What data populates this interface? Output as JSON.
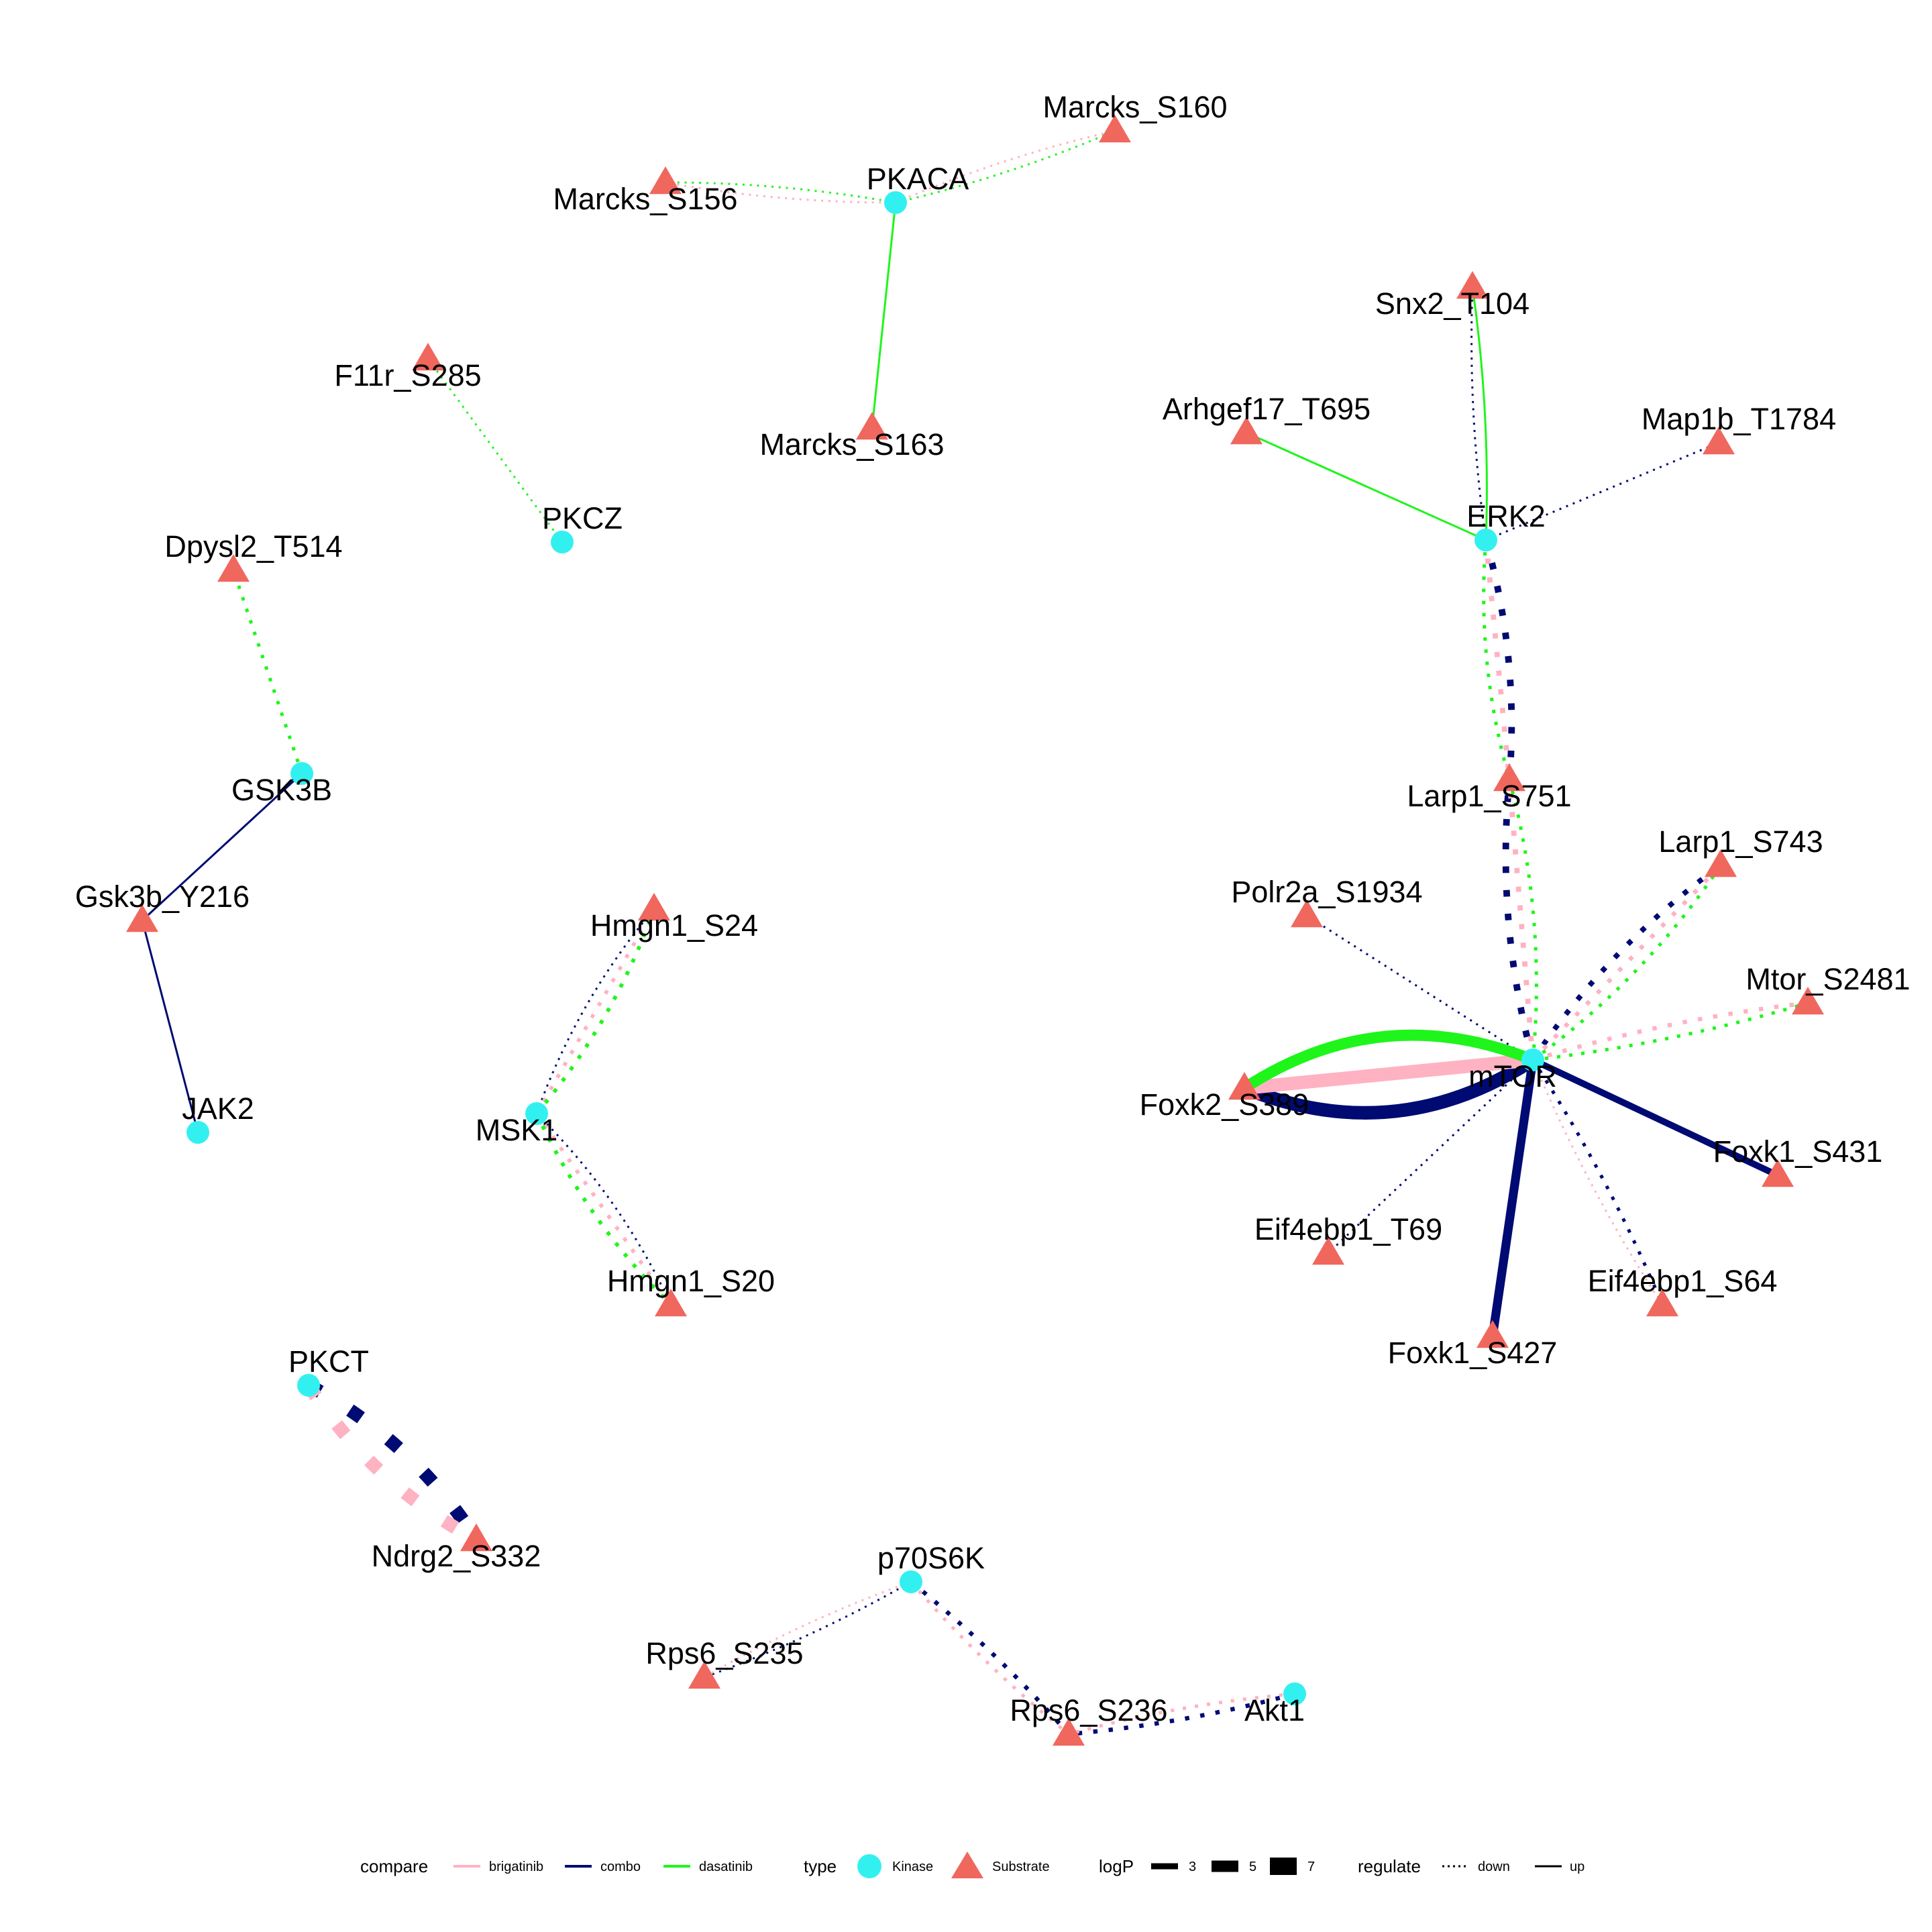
{
  "colors": {
    "kinase": "#33F0F0",
    "substrate": "#F0675E",
    "brigatinib": "#FFB2C2",
    "combo": "#000A73",
    "dasatinib": "#1FF51B"
  },
  "nodes": [
    {
      "id": "PKACA",
      "type": "Kinase"
    },
    {
      "id": "Marcks_S160",
      "type": "Substrate"
    },
    {
      "id": "Marcks_S156",
      "type": "Substrate"
    },
    {
      "id": "Marcks_S163",
      "type": "Substrate"
    },
    {
      "id": "F11r_S285",
      "type": "Substrate"
    },
    {
      "id": "PKCZ",
      "type": "Kinase"
    },
    {
      "id": "Dpysl2_T514",
      "type": "Substrate"
    },
    {
      "id": "GSK3B",
      "type": "Kinase"
    },
    {
      "id": "Gsk3b_Y216",
      "type": "Substrate"
    },
    {
      "id": "JAK2",
      "type": "Kinase"
    },
    {
      "id": "Hmgn1_S24",
      "type": "Substrate"
    },
    {
      "id": "MSK1",
      "type": "Kinase"
    },
    {
      "id": "Hmgn1_S20",
      "type": "Substrate"
    },
    {
      "id": "PKCT",
      "type": "Kinase"
    },
    {
      "id": "Ndrg2_S332",
      "type": "Substrate"
    },
    {
      "id": "p70S6K",
      "type": "Kinase"
    },
    {
      "id": "Rps6_S235",
      "type": "Substrate"
    },
    {
      "id": "Rps6_S236",
      "type": "Substrate"
    },
    {
      "id": "Akt1",
      "type": "Kinase"
    },
    {
      "id": "Snx2_T104",
      "type": "Substrate"
    },
    {
      "id": "Arhgef17_T695",
      "type": "Substrate"
    },
    {
      "id": "Map1b_T1784",
      "type": "Substrate"
    },
    {
      "id": "ERK2",
      "type": "Kinase"
    },
    {
      "id": "Larp1_S751",
      "type": "Substrate"
    },
    {
      "id": "Larp1_S743",
      "type": "Substrate"
    },
    {
      "id": "Polr2a_S1934",
      "type": "Substrate"
    },
    {
      "id": "Mtor_S2481",
      "type": "Substrate"
    },
    {
      "id": "mTOR",
      "type": "Kinase"
    },
    {
      "id": "Foxk2_S389",
      "type": "Substrate"
    },
    {
      "id": "Foxk1_S431",
      "type": "Substrate"
    },
    {
      "id": "Eif4ebp1_T69",
      "type": "Substrate"
    },
    {
      "id": "Eif4ebp1_S64",
      "type": "Substrate"
    },
    {
      "id": "Foxk1_S427",
      "type": "Substrate"
    }
  ],
  "edges": [
    {
      "from": "PKACA",
      "to": "Marcks_S160",
      "compare": "brigatinib",
      "regulate": "down",
      "logP": 2
    },
    {
      "from": "PKACA",
      "to": "Marcks_S160",
      "compare": "dasatinib",
      "regulate": "down",
      "logP": 2
    },
    {
      "from": "PKACA",
      "to": "Marcks_S156",
      "compare": "brigatinib",
      "regulate": "down",
      "logP": 2
    },
    {
      "from": "PKACA",
      "to": "Marcks_S156",
      "compare": "dasatinib",
      "regulate": "down",
      "logP": 2
    },
    {
      "from": "PKACA",
      "to": "Marcks_S163",
      "compare": "dasatinib",
      "regulate": "up",
      "logP": 2
    },
    {
      "from": "PKCZ",
      "to": "F11r_S285",
      "compare": "dasatinib",
      "regulate": "down",
      "logP": 2
    },
    {
      "from": "GSK3B",
      "to": "Dpysl2_T514",
      "compare": "dasatinib",
      "regulate": "down",
      "logP": 2.6
    },
    {
      "from": "GSK3B",
      "to": "Gsk3b_Y216",
      "compare": "combo",
      "regulate": "up",
      "logP": 1.8
    },
    {
      "from": "JAK2",
      "to": "Gsk3b_Y216",
      "compare": "combo",
      "regulate": "up",
      "logP": 1.8
    },
    {
      "from": "MSK1",
      "to": "Hmgn1_S24",
      "compare": "combo",
      "regulate": "down",
      "logP": 2
    },
    {
      "from": "MSK1",
      "to": "Hmgn1_S24",
      "compare": "brigatinib",
      "regulate": "down",
      "logP": 2.8
    },
    {
      "from": "MSK1",
      "to": "Hmgn1_S24",
      "compare": "dasatinib",
      "regulate": "down",
      "logP": 2.8
    },
    {
      "from": "MSK1",
      "to": "Hmgn1_S20",
      "compare": "combo",
      "regulate": "down",
      "logP": 2
    },
    {
      "from": "MSK1",
      "to": "Hmgn1_S20",
      "compare": "brigatinib",
      "regulate": "down",
      "logP": 2.8
    },
    {
      "from": "MSK1",
      "to": "Hmgn1_S20",
      "compare": "dasatinib",
      "regulate": "down",
      "logP": 2.8
    },
    {
      "from": "PKCT",
      "to": "Ndrg2_S332",
      "compare": "brigatinib",
      "regulate": "down",
      "logP": 7
    },
    {
      "from": "PKCT",
      "to": "Ndrg2_S332",
      "compare": "combo",
      "regulate": "down",
      "logP": 7
    },
    {
      "from": "p70S6K",
      "to": "Rps6_S235",
      "compare": "brigatinib",
      "regulate": "down",
      "logP": 2
    },
    {
      "from": "p70S6K",
      "to": "Rps6_S235",
      "compare": "combo",
      "regulate": "down",
      "logP": 2
    },
    {
      "from": "p70S6K",
      "to": "Rps6_S236",
      "compare": "brigatinib",
      "regulate": "down",
      "logP": 2.6
    },
    {
      "from": "p70S6K",
      "to": "Rps6_S236",
      "compare": "combo",
      "regulate": "down",
      "logP": 3
    },
    {
      "from": "Akt1",
      "to": "Rps6_S236",
      "compare": "brigatinib",
      "regulate": "down",
      "logP": 2.6
    },
    {
      "from": "Akt1",
      "to": "Rps6_S236",
      "compare": "combo",
      "regulate": "down",
      "logP": 3
    },
    {
      "from": "ERK2",
      "to": "Snx2_T104",
      "compare": "combo",
      "regulate": "down",
      "logP": 2
    },
    {
      "from": "ERK2",
      "to": "Snx2_T104",
      "compare": "dasatinib",
      "regulate": "up",
      "logP": 2
    },
    {
      "from": "ERK2",
      "to": "Arhgef17_T695",
      "compare": "dasatinib",
      "regulate": "up",
      "logP": 2
    },
    {
      "from": "ERK2",
      "to": "Map1b_T1784",
      "compare": "combo",
      "regulate": "down",
      "logP": 2
    },
    {
      "from": "ERK2",
      "to": "Larp1_S751",
      "compare": "combo",
      "regulate": "down",
      "logP": 4
    },
    {
      "from": "ERK2",
      "to": "Larp1_S751",
      "compare": "brigatinib",
      "regulate": "down",
      "logP": 3.4
    },
    {
      "from": "ERK2",
      "to": "Larp1_S751",
      "compare": "dasatinib",
      "regulate": "down",
      "logP": 2.6
    },
    {
      "from": "mTOR",
      "to": "Larp1_S751",
      "compare": "combo",
      "regulate": "down",
      "logP": 4
    },
    {
      "from": "mTOR",
      "to": "Larp1_S751",
      "compare": "brigatinib",
      "regulate": "down",
      "logP": 3.4
    },
    {
      "from": "mTOR",
      "to": "Larp1_S751",
      "compare": "dasatinib",
      "regulate": "down",
      "logP": 2.6
    },
    {
      "from": "mTOR",
      "to": "Larp1_S743",
      "compare": "combo",
      "regulate": "down",
      "logP": 3.4
    },
    {
      "from": "mTOR",
      "to": "Larp1_S743",
      "compare": "brigatinib",
      "regulate": "down",
      "logP": 3
    },
    {
      "from": "mTOR",
      "to": "Larp1_S743",
      "compare": "dasatinib",
      "regulate": "down",
      "logP": 2.6
    },
    {
      "from": "mTOR",
      "to": "Polr2a_S1934",
      "compare": "combo",
      "regulate": "down",
      "logP": 2
    },
    {
      "from": "mTOR",
      "to": "Mtor_S2481",
      "compare": "brigatinib",
      "regulate": "down",
      "logP": 3
    },
    {
      "from": "mTOR",
      "to": "Mtor_S2481",
      "compare": "dasatinib",
      "regulate": "down",
      "logP": 2.6
    },
    {
      "from": "mTOR",
      "to": "Foxk2_S389",
      "compare": "dasatinib",
      "regulate": "up",
      "logP": 6
    },
    {
      "from": "mTOR",
      "to": "Foxk2_S389",
      "compare": "brigatinib",
      "regulate": "up",
      "logP": 7
    },
    {
      "from": "mTOR",
      "to": "Foxk2_S389",
      "compare": "combo",
      "regulate": "up",
      "logP": 7
    },
    {
      "from": "mTOR",
      "to": "Foxk1_S431",
      "compare": "combo",
      "regulate": "up",
      "logP": 4
    },
    {
      "from": "mTOR",
      "to": "Foxk1_S427",
      "compare": "combo",
      "regulate": "up",
      "logP": 5
    },
    {
      "from": "mTOR",
      "to": "Eif4ebp1_T69",
      "compare": "combo",
      "regulate": "down",
      "logP": 2
    },
    {
      "from": "mTOR",
      "to": "Eif4ebp1_S64",
      "compare": "combo",
      "regulate": "down",
      "logP": 2.6
    },
    {
      "from": "mTOR",
      "to": "Eif4ebp1_S64",
      "compare": "brigatinib",
      "regulate": "down",
      "logP": 2
    }
  ],
  "legend": {
    "compare": {
      "title": "compare",
      "items": [
        "brigatinib",
        "combo",
        "dasatinib"
      ]
    },
    "type": {
      "title": "type",
      "items": [
        "Kinase",
        "Substrate"
      ]
    },
    "logP": {
      "title": "logP",
      "items": [
        "3",
        "5",
        "7"
      ],
      "values": [
        3,
        5,
        7
      ]
    },
    "regulate": {
      "title": "regulate",
      "items": [
        "down",
        "up"
      ]
    }
  }
}
